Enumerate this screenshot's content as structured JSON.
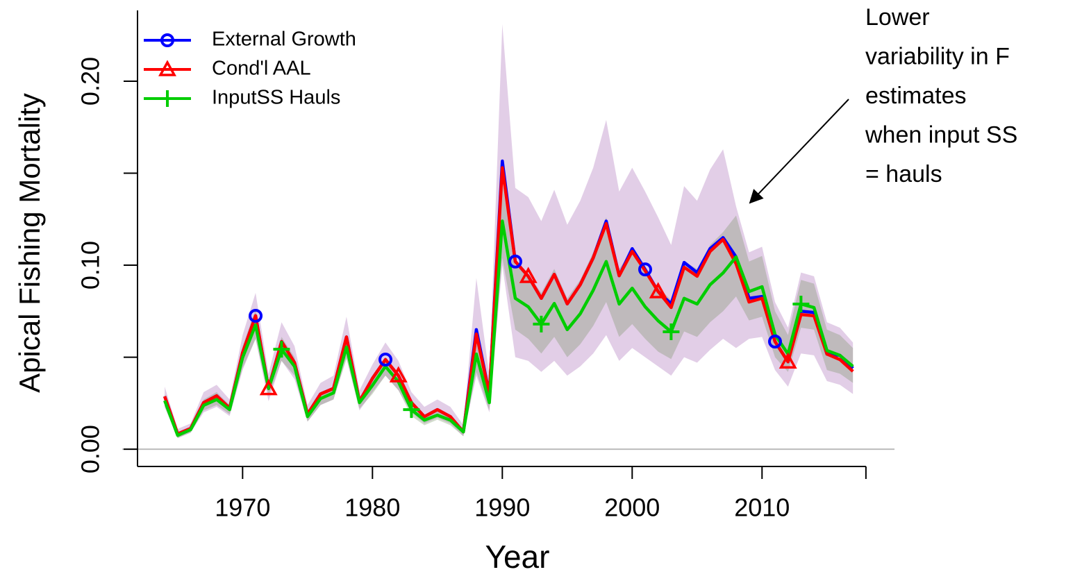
{
  "chart_data": {
    "type": "line",
    "x_label": "Year",
    "y_label": "Apical Fishing Mortality",
    "x": [
      1964,
      1965,
      1966,
      1967,
      1968,
      1969,
      1970,
      1971,
      1972,
      1973,
      1974,
      1975,
      1976,
      1977,
      1978,
      1979,
      1980,
      1981,
      1982,
      1983,
      1984,
      1985,
      1986,
      1987,
      1988,
      1989,
      1990,
      1991,
      1992,
      1993,
      1994,
      1995,
      1996,
      1997,
      1998,
      1999,
      2000,
      2001,
      2002,
      2003,
      2004,
      2005,
      2006,
      2007,
      2008,
      2009,
      2010,
      2011,
      2012,
      2013,
      2014,
      2015,
      2016,
      2017
    ],
    "series": [
      {
        "name": "External Growth",
        "color": "#0000ff",
        "band_color": "rgba(150,80,170,0.28)",
        "marker": "circle",
        "marker_x": [
          1971,
          1981,
          1991,
          2001,
          2011
        ],
        "values": [
          0.0287,
          0.0083,
          0.0113,
          0.0253,
          0.029,
          0.0223,
          0.0525,
          0.0725,
          0.033,
          0.0585,
          0.047,
          0.019,
          0.03,
          0.033,
          0.061,
          0.026,
          0.0385,
          0.0487,
          0.04,
          0.0253,
          0.0177,
          0.0215,
          0.0177,
          0.0094,
          0.065,
          0.03,
          0.1566,
          0.102,
          0.094,
          0.082,
          0.095,
          0.079,
          0.0894,
          0.104,
          0.124,
          0.0943,
          0.109,
          0.0977,
          0.0857,
          0.079,
          0.1015,
          0.096,
          0.109,
          0.115,
          0.1045,
          0.082,
          0.083,
          0.0585,
          0.0475,
          0.075,
          0.0743,
          0.0517,
          0.051,
          0.044
        ],
        "upper": [
          0.034,
          0.011,
          0.014,
          0.031,
          0.035,
          0.027,
          0.062,
          0.085,
          0.041,
          0.069,
          0.056,
          0.024,
          0.036,
          0.04,
          0.072,
          0.032,
          0.046,
          0.058,
          0.048,
          0.031,
          0.023,
          0.027,
          0.023,
          0.013,
          0.093,
          0.04,
          0.231,
          0.142,
          0.137,
          0.124,
          0.141,
          0.122,
          0.135,
          0.153,
          0.179,
          0.14,
          0.153,
          0.14,
          0.126,
          0.111,
          0.143,
          0.135,
          0.152,
          0.163,
          0.132,
          0.107,
          0.11,
          0.08,
          0.066,
          0.096,
          0.094,
          0.069,
          0.066,
          0.058
        ],
        "lower": [
          0.023,
          0.006,
          0.009,
          0.02,
          0.023,
          0.018,
          0.043,
          0.06,
          0.026,
          0.048,
          0.038,
          0.015,
          0.024,
          0.027,
          0.05,
          0.021,
          0.031,
          0.04,
          0.032,
          0.02,
          0.014,
          0.017,
          0.014,
          0.007,
          0.04,
          0.02,
          0.1,
          0.05,
          0.048,
          0.042,
          0.048,
          0.04,
          0.045,
          0.052,
          0.062,
          0.048,
          0.055,
          0.05,
          0.045,
          0.04,
          0.05,
          0.047,
          0.054,
          0.06,
          0.055,
          0.06,
          0.061,
          0.043,
          0.034,
          0.052,
          0.051,
          0.037,
          0.035,
          0.03
        ]
      },
      {
        "name": "Cond'l AAL",
        "color": "#ff0000",
        "marker": "triangle",
        "marker_x": [
          1972,
          1982,
          1992,
          2002,
          2012
        ],
        "values": [
          0.0287,
          0.0083,
          0.0113,
          0.0253,
          0.029,
          0.0223,
          0.0525,
          0.0725,
          0.033,
          0.0585,
          0.047,
          0.019,
          0.03,
          0.033,
          0.061,
          0.026,
          0.0385,
          0.0487,
          0.04,
          0.0253,
          0.0177,
          0.0215,
          0.0177,
          0.0094,
          0.0626,
          0.03,
          0.153,
          0.102,
          0.094,
          0.082,
          0.095,
          0.079,
          0.0894,
          0.104,
          0.1226,
          0.0943,
          0.1075,
          0.097,
          0.0857,
          0.077,
          0.0989,
          0.094,
          0.1075,
          0.114,
          0.1008,
          0.08,
          0.082,
          0.0585,
          0.0475,
          0.0732,
          0.0725,
          0.0517,
          0.0487,
          0.0423
        ]
      },
      {
        "name": "InputSS Hauls",
        "color": "#00cd00",
        "band_color": "rgba(110,140,90,0.3)",
        "marker": "plus",
        "marker_x": [
          1973,
          1983,
          1993,
          2003,
          2013
        ],
        "values": [
          0.0264,
          0.0075,
          0.0106,
          0.0238,
          0.027,
          0.0215,
          0.0498,
          0.0675,
          0.033,
          0.0543,
          0.045,
          0.0177,
          0.0275,
          0.0306,
          0.0555,
          0.0253,
          0.0347,
          0.045,
          0.0366,
          0.0215,
          0.0158,
          0.0185,
          0.0158,
          0.0094,
          0.0517,
          0.0253,
          0.124,
          0.082,
          0.0774,
          0.068,
          0.0792,
          0.065,
          0.0736,
          0.0864,
          0.102,
          0.0789,
          0.0875,
          0.0774,
          0.0698,
          0.0638,
          0.082,
          0.0789,
          0.0894,
          0.0958,
          0.1045,
          0.0857,
          0.0883,
          0.0623,
          0.0517,
          0.0789,
          0.077,
          0.0536,
          0.051,
          0.045
        ],
        "upper": [
          0.03,
          0.009,
          0.012,
          0.027,
          0.031,
          0.024,
          0.056,
          0.076,
          0.037,
          0.061,
          0.05,
          0.02,
          0.031,
          0.034,
          0.062,
          0.028,
          0.039,
          0.05,
          0.041,
          0.025,
          0.018,
          0.021,
          0.018,
          0.011,
          0.062,
          0.03,
          0.145,
          0.1,
          0.095,
          0.085,
          0.098,
          0.082,
          0.092,
          0.107,
          0.126,
          0.098,
          0.108,
          0.097,
          0.088,
          0.081,
          0.102,
          0.098,
          0.111,
          0.118,
          0.127,
          0.102,
          0.105,
          0.075,
          0.062,
          0.092,
          0.09,
          0.065,
          0.062,
          0.055
        ],
        "lower": [
          0.023,
          0.006,
          0.009,
          0.021,
          0.024,
          0.019,
          0.044,
          0.06,
          0.029,
          0.048,
          0.04,
          0.015,
          0.024,
          0.027,
          0.049,
          0.022,
          0.03,
          0.04,
          0.032,
          0.018,
          0.013,
          0.016,
          0.013,
          0.007,
          0.042,
          0.021,
          0.104,
          0.065,
          0.06,
          0.052,
          0.061,
          0.05,
          0.057,
          0.067,
          0.08,
          0.061,
          0.068,
          0.06,
          0.053,
          0.049,
          0.064,
          0.061,
          0.069,
          0.075,
          0.083,
          0.07,
          0.072,
          0.05,
          0.042,
          0.066,
          0.065,
          0.043,
          0.041,
          0.036
        ]
      }
    ],
    "xlim": [
      1961.8,
      2020.2
    ],
    "xticks": [
      1970,
      1980,
      1990,
      2000,
      2010,
      {
        "value": 2018,
        "label": null
      }
    ],
    "ylim": [
      -0.0094,
      0.2385
    ],
    "yticks": [
      {
        "value": 0,
        "label": "0.00"
      },
      {
        "value": 0.05,
        "label": null
      },
      {
        "value": 0.1,
        "label": "0.10"
      },
      {
        "value": 0.15,
        "label": null
      },
      {
        "value": 0.2,
        "label": "0.20"
      }
    ],
    "hline": 0,
    "legend": "top-left",
    "annotation": {
      "text": [
        "Lower",
        "variability in F",
        "estimates",
        "when input SS",
        "= hauls"
      ]
    }
  }
}
